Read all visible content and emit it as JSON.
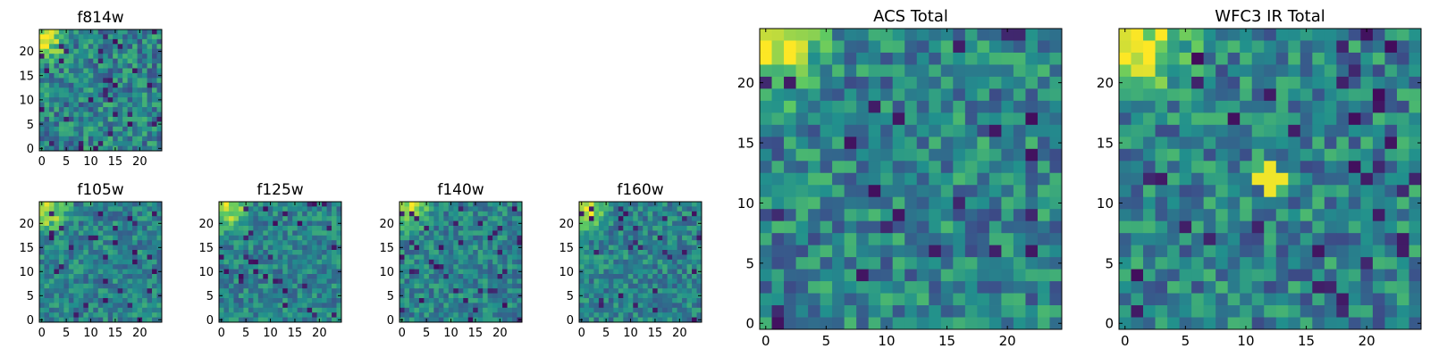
{
  "colormap": [
    "#440154",
    "#3b528b",
    "#21908d",
    "#5dc963",
    "#fde725"
  ],
  "chart_data": [
    {
      "type": "heatmap",
      "title": "f814w",
      "grid_size": 25,
      "xticks": [
        "0",
        "5",
        "10",
        "15",
        "20"
      ],
      "yticks": [
        "0",
        "5",
        "10",
        "15",
        "20"
      ],
      "xlim": [
        0,
        25
      ],
      "ylim": [
        0,
        25
      ],
      "bright_region": "top-left corner"
    },
    {
      "type": "heatmap",
      "title": "f105w",
      "grid_size": 25,
      "xticks": [
        "0",
        "5",
        "10",
        "15",
        "20"
      ],
      "yticks": [
        "0",
        "5",
        "10",
        "15",
        "20"
      ],
      "xlim": [
        0,
        25
      ],
      "ylim": [
        0,
        25
      ],
      "bright_region": "top-left corner"
    },
    {
      "type": "heatmap",
      "title": "f125w",
      "grid_size": 25,
      "xticks": [
        "0",
        "5",
        "10",
        "15",
        "20"
      ],
      "yticks": [
        "0",
        "5",
        "10",
        "15",
        "20"
      ],
      "xlim": [
        0,
        25
      ],
      "ylim": [
        0,
        25
      ],
      "bright_region": "top-left corner"
    },
    {
      "type": "heatmap",
      "title": "f140w",
      "grid_size": 25,
      "xticks": [
        "0",
        "5",
        "10",
        "15",
        "20"
      ],
      "yticks": [
        "0",
        "5",
        "10",
        "15",
        "20"
      ],
      "xlim": [
        0,
        25
      ],
      "ylim": [
        0,
        25
      ],
      "bright_region": "top-left corner"
    },
    {
      "type": "heatmap",
      "title": "f160w",
      "grid_size": 25,
      "xticks": [
        "0",
        "5",
        "10",
        "15",
        "20"
      ],
      "yticks": [
        "0",
        "5",
        "10",
        "15",
        "20"
      ],
      "xlim": [
        0,
        25
      ],
      "ylim": [
        0,
        25
      ],
      "bright_region": "top-left corner"
    },
    {
      "type": "heatmap",
      "title": "ACS Total",
      "grid_size": 25,
      "xticks": [
        "0",
        "5",
        "10",
        "15",
        "20"
      ],
      "yticks": [
        "0",
        "5",
        "10",
        "15",
        "20"
      ],
      "xlim": [
        0,
        25
      ],
      "ylim": [
        0,
        25
      ],
      "bright_region": "top-left corner"
    },
    {
      "type": "heatmap",
      "title": "WFC3 IR Total",
      "grid_size": 25,
      "xticks": [
        "0",
        "5",
        "10",
        "15",
        "20"
      ],
      "yticks": [
        "0",
        "5",
        "10",
        "15",
        "20"
      ],
      "xlim": [
        0,
        25
      ],
      "ylim": [
        0,
        25
      ],
      "bright_region": "top-left corner and center x=12, y=12"
    }
  ]
}
